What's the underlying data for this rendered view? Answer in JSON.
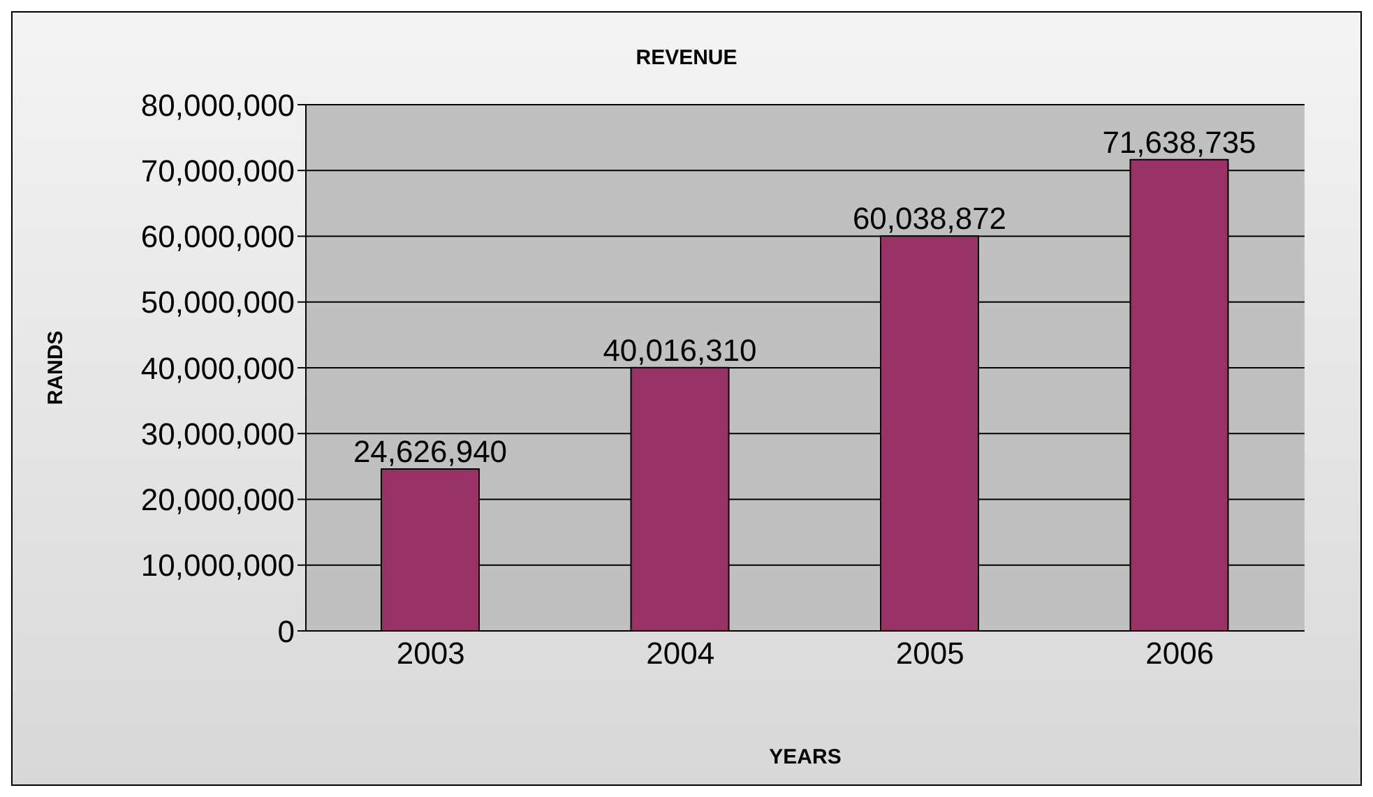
{
  "chart_data": {
    "type": "bar",
    "title": "REVENUE",
    "xlabel": "YEARS",
    "ylabel": "RANDS",
    "categories": [
      "2003",
      "2004",
      "2005",
      "2006"
    ],
    "values": [
      24626940,
      40016310,
      60038872,
      71638735
    ],
    "value_labels": [
      "24,626,940",
      "40,016,310",
      "60,038,872",
      "71,638,735"
    ],
    "color": "#993366",
    "ylim": [
      0,
      80000000
    ],
    "yticks": [
      0,
      {
        "value": 10000000,
        "label": "10,000,000"
      },
      {
        "value": 20000000,
        "label": "20,000,000"
      },
      {
        "value": 30000000,
        "label": "30,000,000"
      },
      {
        "value": 40000000,
        "label": "40,000,000"
      },
      {
        "value": 50000000,
        "label": "50,000,000"
      },
      {
        "value": 60000000,
        "label": "60,000,000"
      },
      {
        "value": 70000000,
        "label": "70,000,000"
      },
      {
        "value": 80000000,
        "label": "80,000,000"
      }
    ],
    "grid": "y",
    "legend": false
  }
}
